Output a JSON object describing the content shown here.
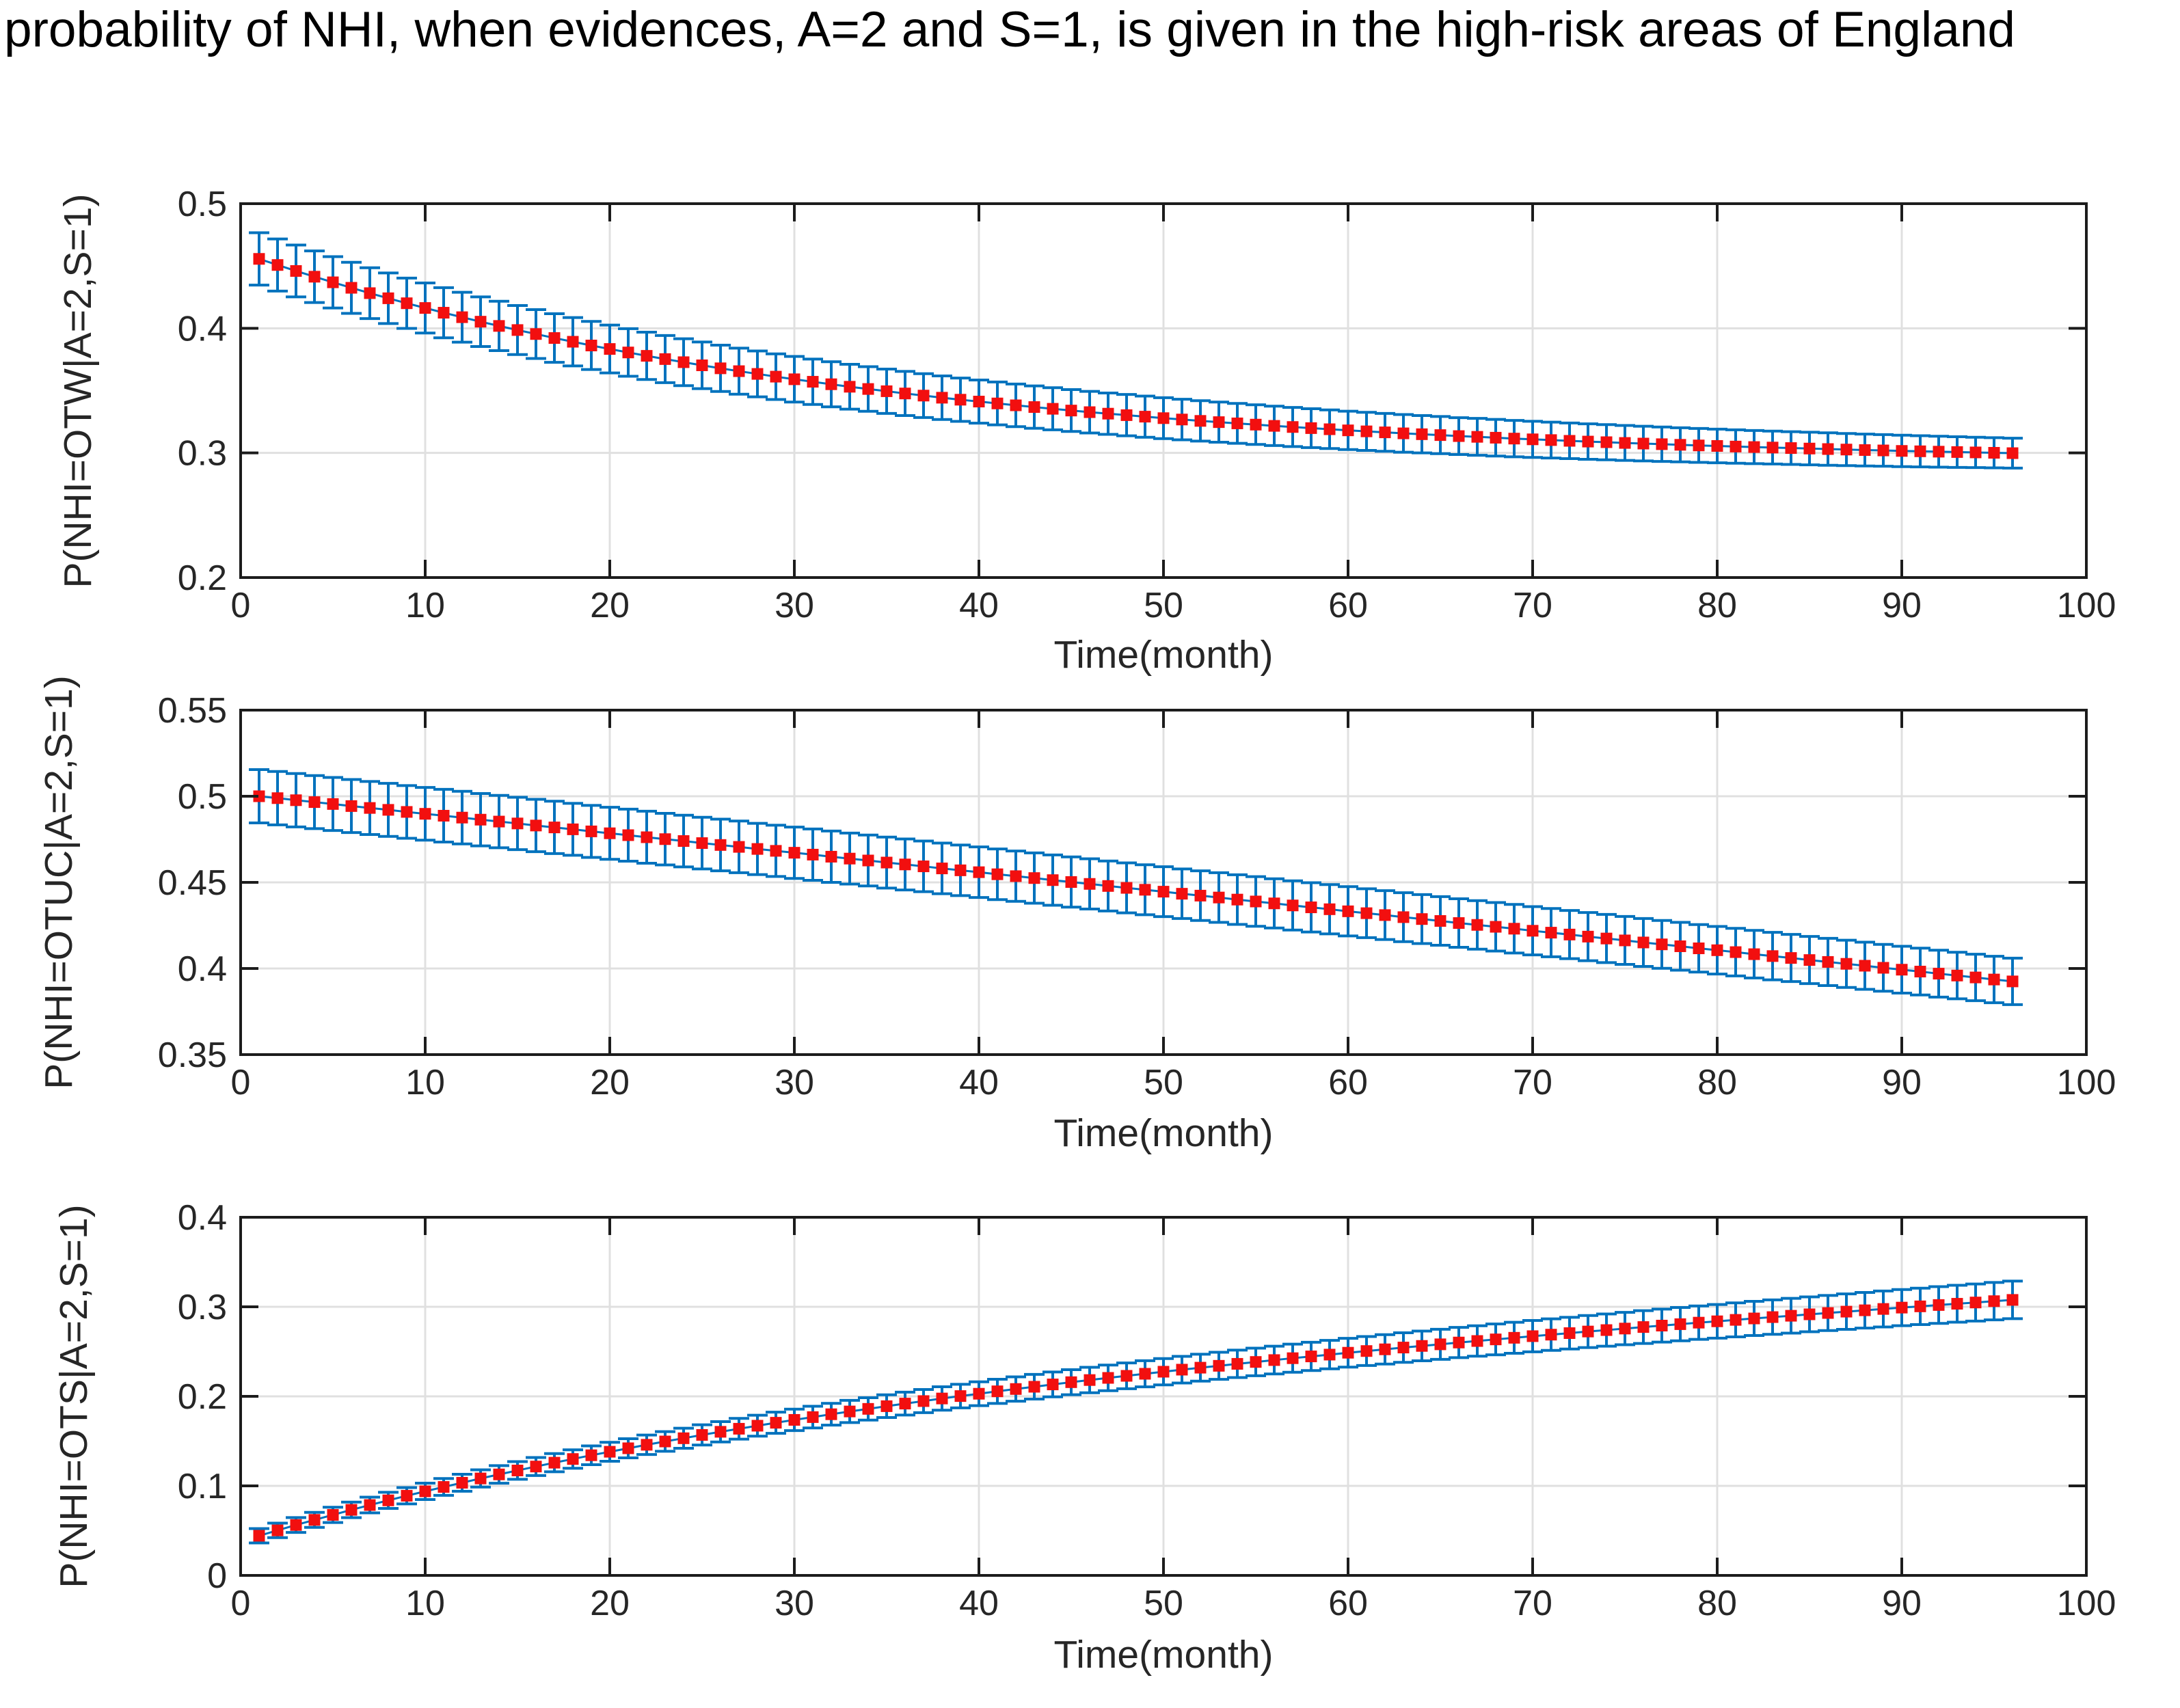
{
  "figure": {
    "title": "probability of NHI, when evidences, A=2 and S=1, is given in the high-risk areas of England"
  },
  "style": {
    "background": "#ffffff",
    "axis_color": "#1c1c1c",
    "tick_label_color": "#262626",
    "grid_color": "#e0e0e0",
    "matlab_blue": "#0072bd",
    "matlab_red": "#f20f0f"
  },
  "months": [
    1,
    2,
    3,
    4,
    5,
    6,
    7,
    8,
    9,
    10,
    11,
    12,
    13,
    14,
    15,
    16,
    17,
    18,
    19,
    20,
    21,
    22,
    23,
    24,
    25,
    26,
    27,
    28,
    29,
    30,
    31,
    32,
    33,
    34,
    35,
    36,
    37,
    38,
    39,
    40,
    41,
    42,
    43,
    44,
    45,
    46,
    47,
    48,
    49,
    50,
    51,
    52,
    53,
    54,
    55,
    56,
    57,
    58,
    59,
    60,
    61,
    62,
    63,
    64,
    65,
    66,
    67,
    68,
    69,
    70,
    71,
    72,
    73,
    74,
    75,
    76,
    77,
    78,
    79,
    80,
    81,
    82,
    83,
    84,
    85,
    86,
    87,
    88,
    89,
    90,
    91,
    92,
    93,
    94,
    95,
    96
  ],
  "chart_data": [
    {
      "type": "line",
      "title": "",
      "xlabel": "Time(month)",
      "ylabel": "P(NHI=OTW|A=2,S=1)",
      "xlim": [
        0,
        100
      ],
      "ylim": [
        0.2,
        0.5
      ],
      "xticks": [
        0,
        10,
        20,
        30,
        40,
        50,
        60,
        70,
        80,
        90,
        100
      ],
      "xtick_labels": [
        "0",
        "10",
        "20",
        "30",
        "40",
        "50",
        "60",
        "70",
        "80",
        "90",
        "100"
      ],
      "yticks": [
        0.2,
        0.3,
        0.4,
        0.5
      ],
      "ytick_labels": [
        "0.2",
        "0.3",
        "0.4",
        "0.5"
      ],
      "grid": true,
      "legend": null,
      "series": [
        {
          "name": "posterior probability of NHI=OTW with error bars",
          "marker": "filled-square",
          "marker_color": "#f20f0f",
          "line_color": "#0072bd",
          "errorbar_color": "#0072bd",
          "y": [
            0.4557,
            0.4508,
            0.446,
            0.4414,
            0.4369,
            0.4325,
            0.4282,
            0.4241,
            0.4201,
            0.4163,
            0.4125,
            0.4089,
            0.4053,
            0.4019,
            0.3986,
            0.3954,
            0.3922,
            0.3892,
            0.3862,
            0.3834,
            0.3806,
            0.3779,
            0.3753,
            0.3728,
            0.3703,
            0.3679,
            0.3656,
            0.3634,
            0.3612,
            0.3591,
            0.3571,
            0.3551,
            0.3531,
            0.3513,
            0.3495,
            0.3477,
            0.346,
            0.3443,
            0.3427,
            0.3412,
            0.3397,
            0.3382,
            0.3368,
            0.3354,
            0.334,
            0.3327,
            0.3315,
            0.3303,
            0.3291,
            0.3279,
            0.3268,
            0.3257,
            0.3247,
            0.3237,
            0.3227,
            0.3217,
            0.3208,
            0.3199,
            0.319,
            0.3181,
            0.3173,
            0.3165,
            0.3157,
            0.315,
            0.3143,
            0.3135,
            0.3129,
            0.3122,
            0.3115,
            0.3109,
            0.3103,
            0.3097,
            0.3091,
            0.3086,
            0.308,
            0.3075,
            0.307,
            0.3065,
            0.306,
            0.3056,
            0.3051,
            0.3047,
            0.3043,
            0.3039,
            0.3035,
            0.3031,
            0.3027,
            0.3023,
            0.302,
            0.3016,
            0.3013,
            0.301,
            0.3007,
            0.3004,
            0.3001,
            0.2998
          ],
          "yerr": [
            0.021,
            0.0209,
            0.0208,
            0.0207,
            0.0206,
            0.0205,
            0.0204,
            0.0203,
            0.0202,
            0.0201,
            0.0201,
            0.02,
            0.0199,
            0.0198,
            0.0197,
            0.0196,
            0.0195,
            0.0194,
            0.0193,
            0.0192,
            0.0191,
            0.019,
            0.0189,
            0.0188,
            0.0187,
            0.0186,
            0.0185,
            0.0184,
            0.0183,
            0.0183,
            0.0182,
            0.0181,
            0.018,
            0.0179,
            0.0178,
            0.0177,
            0.0176,
            0.0175,
            0.0174,
            0.0173,
            0.0172,
            0.0171,
            0.017,
            0.0169,
            0.0168,
            0.0167,
            0.0166,
            0.0166,
            0.0165,
            0.0164,
            0.0163,
            0.0162,
            0.0161,
            0.016,
            0.0159,
            0.0158,
            0.0157,
            0.0156,
            0.0155,
            0.0154,
            0.0153,
            0.0152,
            0.0151,
            0.015,
            0.0149,
            0.0148,
            0.0148,
            0.0147,
            0.0146,
            0.0145,
            0.0144,
            0.0143,
            0.0142,
            0.0141,
            0.014,
            0.0139,
            0.0138,
            0.0137,
            0.0136,
            0.0135,
            0.0134,
            0.0133,
            0.0132,
            0.0131,
            0.0131,
            0.013,
            0.0129,
            0.0128,
            0.0127,
            0.0126,
            0.0125,
            0.0124,
            0.0123,
            0.0122,
            0.0121,
            0.012
          ]
        }
      ]
    },
    {
      "type": "line",
      "title": "",
      "xlabel": "Time(month)",
      "ylabel": "P(NHI=OTUC|A=2,S=1)",
      "xlim": [
        0,
        100
      ],
      "ylim": [
        0.35,
        0.55
      ],
      "xticks": [
        0,
        10,
        20,
        30,
        40,
        50,
        60,
        70,
        80,
        90,
        100
      ],
      "xtick_labels": [
        "0",
        "10",
        "20",
        "30",
        "40",
        "50",
        "60",
        "70",
        "80",
        "90",
        "100"
      ],
      "yticks": [
        0.35,
        0.4,
        0.45,
        0.5,
        0.55
      ],
      "ytick_labels": [
        "0.35",
        "0.4",
        "0.45",
        "0.5",
        "0.55"
      ],
      "grid": true,
      "legend": null,
      "series": [
        {
          "name": "posterior probability of NHI=OTUC with error bars",
          "marker": "filled-square",
          "marker_color": "#f20f0f",
          "line_color": "#0072bd",
          "errorbar_color": "#0072bd",
          "y": [
            0.5,
            0.4989,
            0.4977,
            0.4966,
            0.4955,
            0.4943,
            0.4932,
            0.4921,
            0.4909,
            0.4898,
            0.4887,
            0.4876,
            0.4864,
            0.4853,
            0.4842,
            0.483,
            0.4819,
            0.4808,
            0.4796,
            0.4785,
            0.4774,
            0.4762,
            0.4751,
            0.474,
            0.4728,
            0.4717,
            0.4706,
            0.4694,
            0.4683,
            0.4672,
            0.4661,
            0.4649,
            0.4638,
            0.4627,
            0.4615,
            0.4604,
            0.4593,
            0.4581,
            0.457,
            0.4559,
            0.4547,
            0.4536,
            0.4525,
            0.4513,
            0.4502,
            0.4491,
            0.4479,
            0.4468,
            0.4457,
            0.4446,
            0.4434,
            0.4423,
            0.4412,
            0.44,
            0.4389,
            0.4378,
            0.4366,
            0.4355,
            0.4344,
            0.4332,
            0.4321,
            0.431,
            0.4298,
            0.4287,
            0.4276,
            0.4264,
            0.4253,
            0.4242,
            0.4231,
            0.4219,
            0.4208,
            0.4197,
            0.4185,
            0.4174,
            0.4163,
            0.4151,
            0.414,
            0.4129,
            0.4117,
            0.4106,
            0.4095,
            0.4083,
            0.4072,
            0.4061,
            0.4049,
            0.4038,
            0.4027,
            0.4016,
            0.4004,
            0.3993,
            0.3982,
            0.397,
            0.3959,
            0.3948,
            0.3936,
            0.3925
          ],
          "yerr": [
            0.0155,
            0.0155,
            0.0155,
            0.0154,
            0.0154,
            0.0154,
            0.0154,
            0.0154,
            0.0153,
            0.0153,
            0.0153,
            0.0153,
            0.0152,
            0.0152,
            0.0152,
            0.0152,
            0.0152,
            0.0151,
            0.0151,
            0.0151,
            0.0151,
            0.0151,
            0.015,
            0.015,
            0.015,
            0.015,
            0.015,
            0.0149,
            0.0149,
            0.0149,
            0.0149,
            0.0149,
            0.0148,
            0.0148,
            0.0148,
            0.0148,
            0.0147,
            0.0147,
            0.0147,
            0.0147,
            0.0147,
            0.0146,
            0.0146,
            0.0146,
            0.0146,
            0.0146,
            0.0145,
            0.0145,
            0.0145,
            0.0145,
            0.0144,
            0.0144,
            0.0144,
            0.0144,
            0.0144,
            0.0143,
            0.0143,
            0.0143,
            0.0143,
            0.0143,
            0.0142,
            0.0142,
            0.0142,
            0.0142,
            0.0141,
            0.0141,
            0.0141,
            0.0141,
            0.0141,
            0.014,
            0.014,
            0.014,
            0.014,
            0.014,
            0.0139,
            0.0139,
            0.0139,
            0.0139,
            0.0138,
            0.0138,
            0.0138,
            0.0138,
            0.0138,
            0.0137,
            0.0137,
            0.0137,
            0.0137,
            0.0137,
            0.0136,
            0.0136,
            0.0136,
            0.0136,
            0.0135,
            0.0135,
            0.0135,
            0.0135
          ]
        }
      ]
    },
    {
      "type": "line",
      "title": "",
      "xlabel": "Time(month)",
      "ylabel": "P(NHI=OTS|A=2,S=1)",
      "xlim": [
        0,
        100
      ],
      "ylim": [
        0,
        0.4
      ],
      "xticks": [
        0,
        10,
        20,
        30,
        40,
        50,
        60,
        70,
        80,
        90,
        100
      ],
      "xtick_labels": [
        "0",
        "10",
        "20",
        "30",
        "40",
        "50",
        "60",
        "70",
        "80",
        "90",
        "100"
      ],
      "yticks": [
        0,
        0.1,
        0.2,
        0.3,
        0.4
      ],
      "ytick_labels": [
        "0",
        "0.1",
        "0.2",
        "0.3",
        "0.4"
      ],
      "grid": true,
      "legend": null,
      "series": [
        {
          "name": "posterior probability of NHI=OTS with error bars",
          "marker": "filled-square",
          "marker_color": "#f20f0f",
          "line_color": "#0072bd",
          "errorbar_color": "#0072bd",
          "y": [
            0.0443,
            0.0503,
            0.0563,
            0.062,
            0.0676,
            0.0732,
            0.0786,
            0.0838,
            0.089,
            0.0939,
            0.0988,
            0.1035,
            0.1083,
            0.1128,
            0.1172,
            0.1216,
            0.1259,
            0.13,
            0.1342,
            0.1381,
            0.142,
            0.1459,
            0.1496,
            0.1532,
            0.1569,
            0.1604,
            0.1638,
            0.1672,
            0.1705,
            0.1737,
            0.1768,
            0.18,
            0.1831,
            0.186,
            0.189,
            0.1919,
            0.1947,
            0.1976,
            0.2003,
            0.2029,
            0.2056,
            0.2082,
            0.2107,
            0.2133,
            0.2158,
            0.2182,
            0.2206,
            0.2229,
            0.2252,
            0.2275,
            0.2298,
            0.232,
            0.2341,
            0.2363,
            0.2384,
            0.2405,
            0.2426,
            0.2446,
            0.2466,
            0.2487,
            0.2506,
            0.2525,
            0.2545,
            0.2563,
            0.2581,
            0.2601,
            0.2618,
            0.2636,
            0.2654,
            0.2672,
            0.2689,
            0.2706,
            0.2724,
            0.274,
            0.2757,
            0.2774,
            0.279,
            0.2806,
            0.2823,
            0.2838,
            0.2854,
            0.287,
            0.2885,
            0.29,
            0.2916,
            0.2931,
            0.2946,
            0.2961,
            0.2976,
            0.2991,
            0.3005,
            0.302,
            0.3034,
            0.3048,
            0.3063,
            0.3077
          ],
          "yerr": [
            0.008,
            0.0081,
            0.0083,
            0.0084,
            0.0085,
            0.0087,
            0.0088,
            0.009,
            0.0091,
            0.0092,
            0.0094,
            0.0095,
            0.0096,
            0.0098,
            0.0099,
            0.0101,
            0.0102,
            0.0103,
            0.0105,
            0.0106,
            0.0107,
            0.0109,
            0.011,
            0.0112,
            0.0113,
            0.0114,
            0.0116,
            0.0117,
            0.0118,
            0.012,
            0.0121,
            0.0122,
            0.0124,
            0.0125,
            0.0127,
            0.0128,
            0.0129,
            0.0131,
            0.0132,
            0.0133,
            0.0135,
            0.0136,
            0.0138,
            0.0139,
            0.014,
            0.0142,
            0.0143,
            0.0144,
            0.0146,
            0.0147,
            0.0149,
            0.015,
            0.0151,
            0.0153,
            0.0154,
            0.0155,
            0.0157,
            0.0158,
            0.0159,
            0.0161,
            0.0162,
            0.0164,
            0.0165,
            0.0166,
            0.0168,
            0.0169,
            0.017,
            0.0172,
            0.0173,
            0.0175,
            0.0176,
            0.0177,
            0.0179,
            0.018,
            0.0181,
            0.0183,
            0.0184,
            0.0186,
            0.0187,
            0.0188,
            0.019,
            0.0191,
            0.0192,
            0.0194,
            0.0195,
            0.0196,
            0.0198,
            0.0199,
            0.0201,
            0.0202,
            0.0203,
            0.0205,
            0.0206,
            0.0207,
            0.0209,
            0.021
          ]
        }
      ]
    }
  ]
}
